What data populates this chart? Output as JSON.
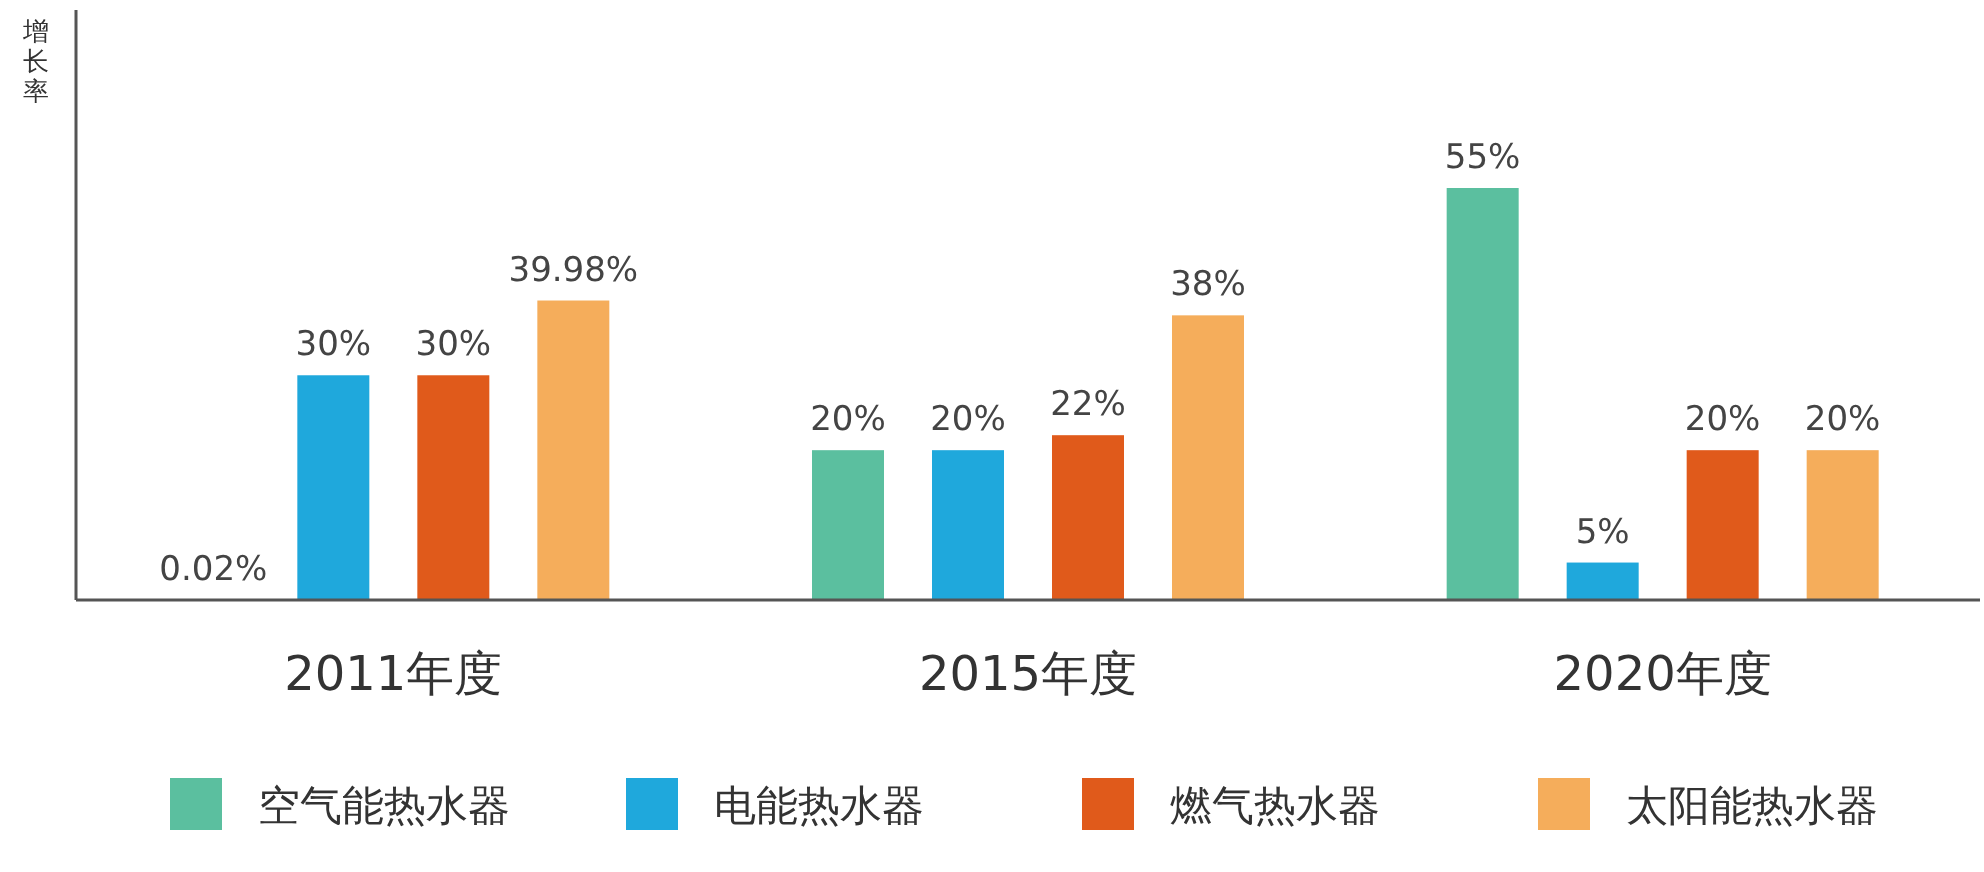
{
  "chart_data": {
    "type": "bar",
    "ylabel": "增长率",
    "categories": [
      "2011年度",
      "2015年度",
      "2020年度"
    ],
    "legend": "bottom",
    "series": [
      {
        "name": "空气能热水器",
        "color": "#5bbf9f",
        "values": [
          0.02,
          20,
          55
        ],
        "value_labels": [
          "0.02%",
          "20%",
          "55%"
        ]
      },
      {
        "name": "电能热水器",
        "color": "#1fa8dc",
        "values": [
          30,
          20,
          5
        ],
        "value_labels": [
          "30%",
          "20%",
          "5%"
        ]
      },
      {
        "name": "燃气热水器",
        "color": "#e05a1b",
        "values": [
          30,
          22,
          20
        ],
        "value_labels": [
          "30%",
          "22%",
          "20%"
        ]
      },
      {
        "name": "太阳能热水器",
        "color": "#f5ad5b",
        "values": [
          39.98,
          38,
          20
        ],
        "value_labels": [
          "39.98%",
          "38%",
          "20%"
        ]
      }
    ]
  }
}
